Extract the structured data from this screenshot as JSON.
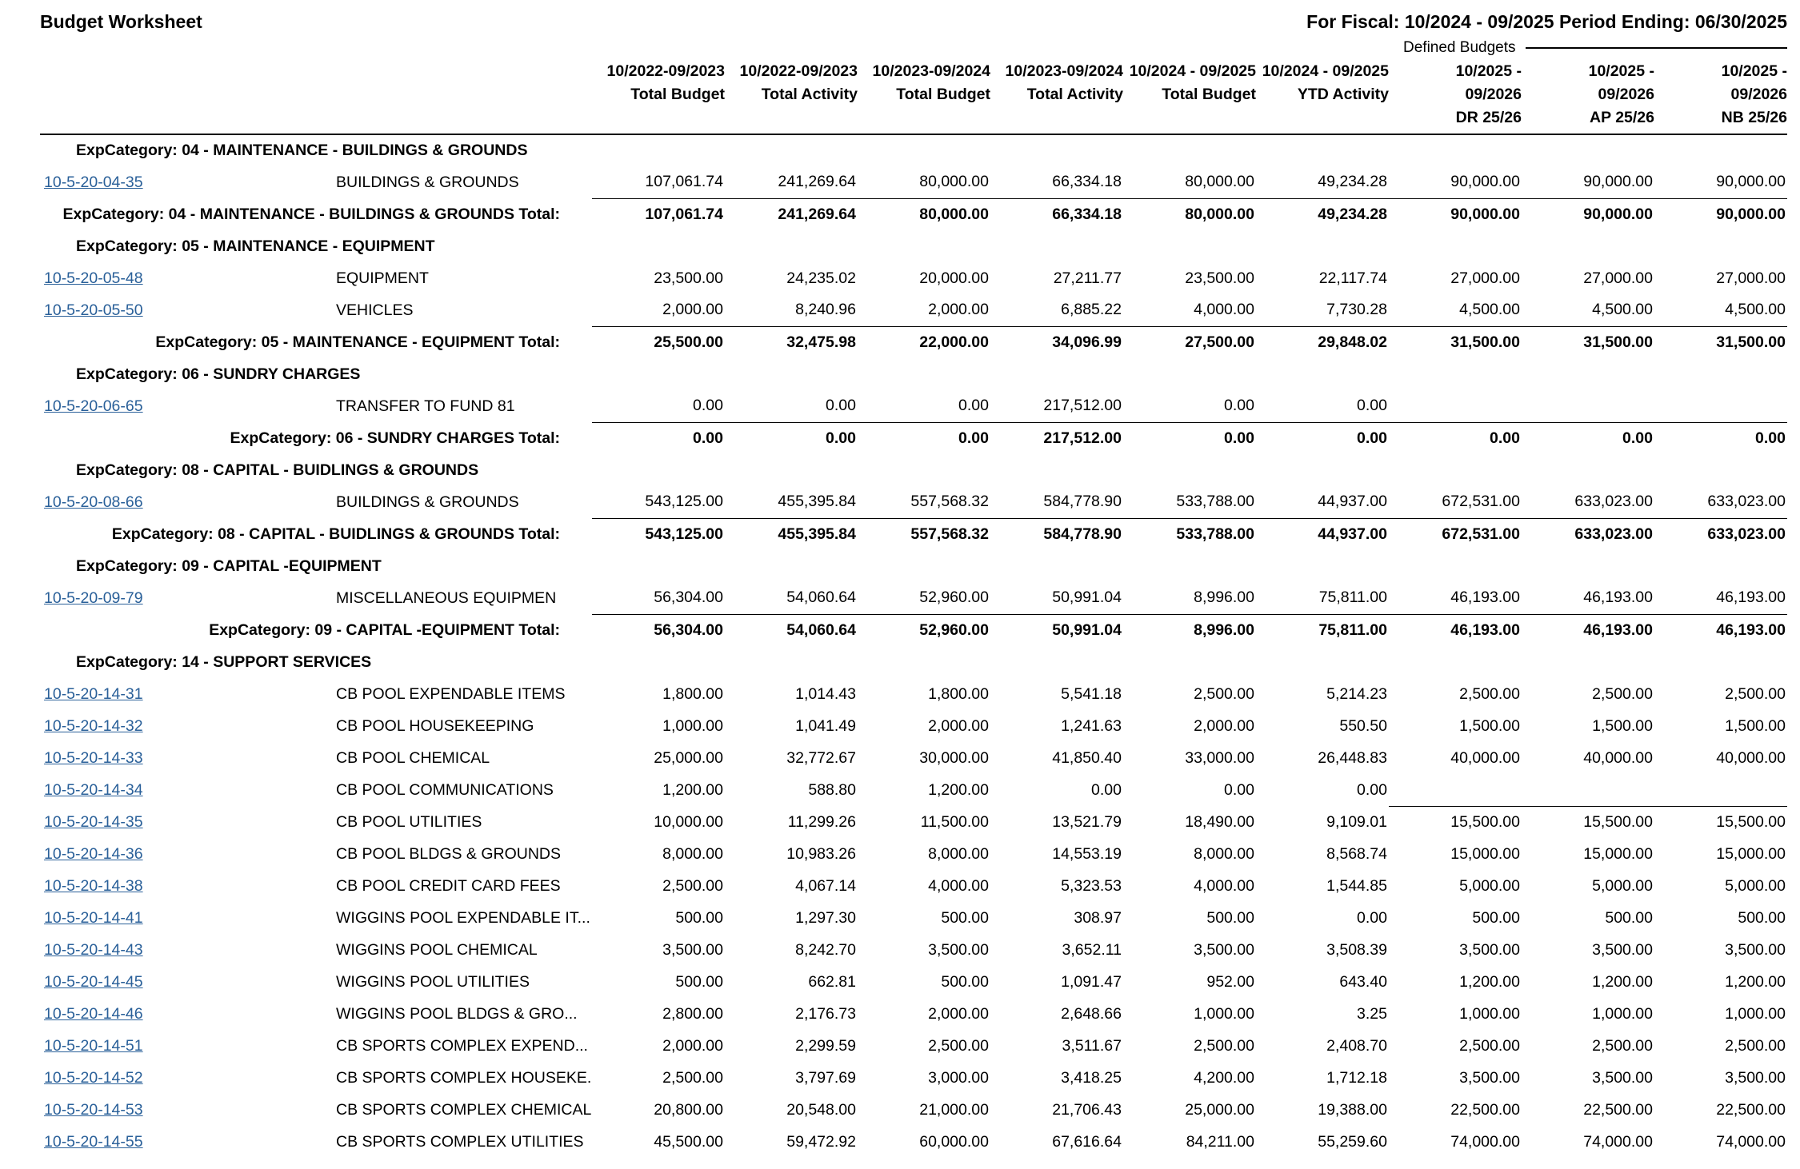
{
  "meta": {
    "title": "Budget Worksheet",
    "fiscal": "For Fiscal: 10/2024 - 09/2025 Period Ending: 06/30/2025",
    "defined_budgets_label": "Defined Budgets",
    "link_color": "#2a6099"
  },
  "columns": [
    {
      "period": "10/2022-09/2023",
      "label": "Total Budget",
      "sub": ""
    },
    {
      "period": "10/2022-09/2023",
      "label": "Total Activity",
      "sub": ""
    },
    {
      "period": "10/2023-09/2024",
      "label": "Total Budget",
      "sub": ""
    },
    {
      "period": "10/2023-09/2024",
      "label": "Total Activity",
      "sub": ""
    },
    {
      "period": "10/2024 - 09/2025",
      "label": "Total Budget",
      "sub": ""
    },
    {
      "period": "10/2024 - 09/2025",
      "label": "YTD Activity",
      "sub": ""
    },
    {
      "period": "10/2025 -",
      "label": "09/2026",
      "sub": "DR 25/26"
    },
    {
      "period": "10/2025 -",
      "label": "09/2026",
      "sub": "AP 25/26"
    },
    {
      "period": "10/2025 -",
      "label": "09/2026",
      "sub": "NB 25/26"
    }
  ],
  "groups": [
    {
      "header": "ExpCategory: 04 - MAINTENANCE - BUILDINGS & GROUNDS",
      "rows": [
        {
          "account": "10-5-20-04-35",
          "desc": "BUILDINGS & GROUNDS",
          "rule": "amounts",
          "values": [
            "107,061.74",
            "241,269.64",
            "80,000.00",
            "66,334.18",
            "80,000.00",
            "49,234.28",
            "90,000.00",
            "90,000.00",
            "90,000.00"
          ]
        }
      ],
      "total": {
        "label": "ExpCategory: 04 - MAINTENANCE - BUILDINGS & GROUNDS Total:",
        "values": [
          "107,061.74",
          "241,269.64",
          "80,000.00",
          "66,334.18",
          "80,000.00",
          "49,234.28",
          "90,000.00",
          "90,000.00",
          "90,000.00"
        ]
      }
    },
    {
      "header": "ExpCategory: 05 - MAINTENANCE - EQUIPMENT",
      "rows": [
        {
          "account": "10-5-20-05-48",
          "desc": "EQUIPMENT",
          "rule": "none",
          "values": [
            "23,500.00",
            "24,235.02",
            "20,000.00",
            "27,211.77",
            "23,500.00",
            "22,117.74",
            "27,000.00",
            "27,000.00",
            "27,000.00"
          ]
        },
        {
          "account": "10-5-20-05-50",
          "desc": "VEHICLES",
          "rule": "amounts",
          "values": [
            "2,000.00",
            "8,240.96",
            "2,000.00",
            "6,885.22",
            "4,000.00",
            "7,730.28",
            "4,500.00",
            "4,500.00",
            "4,500.00"
          ]
        }
      ],
      "total": {
        "label": "ExpCategory: 05 - MAINTENANCE - EQUIPMENT Total:",
        "values": [
          "25,500.00",
          "32,475.98",
          "22,000.00",
          "34,096.99",
          "27,500.00",
          "29,848.02",
          "31,500.00",
          "31,500.00",
          "31,500.00"
        ]
      }
    },
    {
      "header": "ExpCategory: 06 - SUNDRY CHARGES",
      "rows": [
        {
          "account": "10-5-20-06-65",
          "desc": "TRANSFER TO FUND 81",
          "rule": "amounts",
          "values": [
            "0.00",
            "0.00",
            "0.00",
            "217,512.00",
            "0.00",
            "0.00",
            "",
            "",
            ""
          ]
        }
      ],
      "total": {
        "label": "ExpCategory: 06 - SUNDRY CHARGES Total:",
        "values": [
          "0.00",
          "0.00",
          "0.00",
          "217,512.00",
          "0.00",
          "0.00",
          "0.00",
          "0.00",
          "0.00"
        ]
      }
    },
    {
      "header": "ExpCategory: 08 - CAPITAL - BUIDLINGS & GROUNDS",
      "rows": [
        {
          "account": "10-5-20-08-66",
          "desc": "BUILDINGS & GROUNDS",
          "rule": "amounts",
          "values": [
            "543,125.00",
            "455,395.84",
            "557,568.32",
            "584,778.90",
            "533,788.00",
            "44,937.00",
            "672,531.00",
            "633,023.00",
            "633,023.00"
          ]
        }
      ],
      "total": {
        "label": "ExpCategory: 08 - CAPITAL - BUIDLINGS & GROUNDS Total:",
        "values": [
          "543,125.00",
          "455,395.84",
          "557,568.32",
          "584,778.90",
          "533,788.00",
          "44,937.00",
          "672,531.00",
          "633,023.00",
          "633,023.00"
        ]
      }
    },
    {
      "header": "ExpCategory: 09 - CAPITAL -EQUIPMENT",
      "rows": [
        {
          "account": "10-5-20-09-79",
          "desc": "MISCELLANEOUS EQUIPMEN",
          "rule": "amounts",
          "values": [
            "56,304.00",
            "54,060.64",
            "52,960.00",
            "50,991.04",
            "8,996.00",
            "75,811.00",
            "46,193.00",
            "46,193.00",
            "46,193.00"
          ]
        }
      ],
      "total": {
        "label": "ExpCategory: 09 - CAPITAL -EQUIPMENT Total:",
        "values": [
          "56,304.00",
          "54,060.64",
          "52,960.00",
          "50,991.04",
          "8,996.00",
          "75,811.00",
          "46,193.00",
          "46,193.00",
          "46,193.00"
        ]
      }
    },
    {
      "header": "ExpCategory: 14 - SUPPORT SERVICES",
      "rows": [
        {
          "account": "10-5-20-14-31",
          "desc": "CB POOL EXPENDABLE ITEMS",
          "rule": "none",
          "values": [
            "1,800.00",
            "1,014.43",
            "1,800.00",
            "5,541.18",
            "2,500.00",
            "5,214.23",
            "2,500.00",
            "2,500.00",
            "2,500.00"
          ]
        },
        {
          "account": "10-5-20-14-32",
          "desc": "CB POOL HOUSEKEEPING",
          "rule": "none",
          "values": [
            "1,000.00",
            "1,041.49",
            "2,000.00",
            "1,241.63",
            "2,000.00",
            "550.50",
            "1,500.00",
            "1,500.00",
            "1,500.00"
          ]
        },
        {
          "account": "10-5-20-14-33",
          "desc": "CB POOL CHEMICAL",
          "rule": "none",
          "values": [
            "25,000.00",
            "32,772.67",
            "30,000.00",
            "41,850.40",
            "33,000.00",
            "26,448.83",
            "40,000.00",
            "40,000.00",
            "40,000.00"
          ]
        },
        {
          "account": "10-5-20-14-34",
          "desc": "CB POOL COMMUNICATIONS",
          "rule": "defined",
          "values": [
            "1,200.00",
            "588.80",
            "1,200.00",
            "0.00",
            "0.00",
            "0.00",
            "",
            "",
            ""
          ]
        },
        {
          "account": "10-5-20-14-35",
          "desc": "CB POOL UTILITIES",
          "rule": "none",
          "values": [
            "10,000.00",
            "11,299.26",
            "11,500.00",
            "13,521.79",
            "18,490.00",
            "9,109.01",
            "15,500.00",
            "15,500.00",
            "15,500.00"
          ]
        },
        {
          "account": "10-5-20-14-36",
          "desc": "CB POOL BLDGS & GROUNDS",
          "rule": "none",
          "values": [
            "8,000.00",
            "10,983.26",
            "8,000.00",
            "14,553.19",
            "8,000.00",
            "8,568.74",
            "15,000.00",
            "15,000.00",
            "15,000.00"
          ]
        },
        {
          "account": "10-5-20-14-38",
          "desc": "CB POOL CREDIT CARD FEES",
          "rule": "none",
          "values": [
            "2,500.00",
            "4,067.14",
            "4,000.00",
            "5,323.53",
            "4,000.00",
            "1,544.85",
            "5,000.00",
            "5,000.00",
            "5,000.00"
          ]
        },
        {
          "account": "10-5-20-14-41",
          "desc": "WIGGINS POOL EXPENDABLE IT...",
          "rule": "none",
          "values": [
            "500.00",
            "1,297.30",
            "500.00",
            "308.97",
            "500.00",
            "0.00",
            "500.00",
            "500.00",
            "500.00"
          ]
        },
        {
          "account": "10-5-20-14-43",
          "desc": "WIGGINS POOL CHEMICAL",
          "rule": "none",
          "values": [
            "3,500.00",
            "8,242.70",
            "3,500.00",
            "3,652.11",
            "3,500.00",
            "3,508.39",
            "3,500.00",
            "3,500.00",
            "3,500.00"
          ]
        },
        {
          "account": "10-5-20-14-45",
          "desc": "WIGGINS POOL UTILITIES",
          "rule": "none",
          "values": [
            "500.00",
            "662.81",
            "500.00",
            "1,091.47",
            "952.00",
            "643.40",
            "1,200.00",
            "1,200.00",
            "1,200.00"
          ]
        },
        {
          "account": "10-5-20-14-46",
          "desc": "WIGGINS POOL BLDGS & GRO...",
          "rule": "none",
          "values": [
            "2,800.00",
            "2,176.73",
            "2,000.00",
            "2,648.66",
            "1,000.00",
            "3.25",
            "1,000.00",
            "1,000.00",
            "1,000.00"
          ]
        },
        {
          "account": "10-5-20-14-51",
          "desc": "CB SPORTS COMPLEX EXPEND...",
          "rule": "none",
          "values": [
            "2,000.00",
            "2,299.59",
            "2,500.00",
            "3,511.67",
            "2,500.00",
            "2,408.70",
            "2,500.00",
            "2,500.00",
            "2,500.00"
          ]
        },
        {
          "account": "10-5-20-14-52",
          "desc": "CB SPORTS COMPLEX HOUSEKE...",
          "rule": "none",
          "values": [
            "2,500.00",
            "3,797.69",
            "3,000.00",
            "3,418.25",
            "4,200.00",
            "1,712.18",
            "3,500.00",
            "3,500.00",
            "3,500.00"
          ]
        },
        {
          "account": "10-5-20-14-53",
          "desc": "CB SPORTS COMPLEX CHEMICAL",
          "rule": "none",
          "values": [
            "20,800.00",
            "20,548.00",
            "21,000.00",
            "21,706.43",
            "25,000.00",
            "19,388.00",
            "22,500.00",
            "22,500.00",
            "22,500.00"
          ]
        },
        {
          "account": "10-5-20-14-55",
          "desc": "CB SPORTS COMPLEX UTILITIES",
          "rule": "none",
          "values": [
            "45,500.00",
            "59,472.92",
            "60,000.00",
            "67,616.64",
            "84,211.00",
            "55,259.60",
            "74,000.00",
            "74,000.00",
            "74,000.00"
          ]
        }
      ],
      "total": null
    }
  ]
}
